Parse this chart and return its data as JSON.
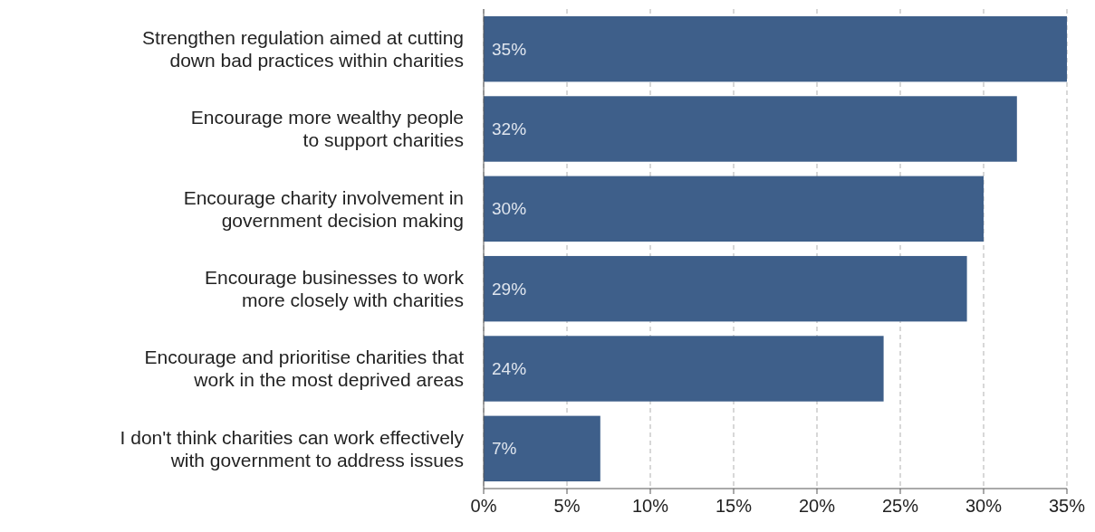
{
  "chart_data": {
    "type": "bar",
    "orientation": "horizontal",
    "categories": [
      "Strengthen regulation aimed at cutting\ndown bad practices within charities",
      "Encourage more wealthy people\nto support charities",
      "Encourage charity involvement in\ngovernment decision making",
      "Encourage businesses to work\nmore closely with charities",
      "Encourage and prioritise charities that\nwork in the most deprived areas",
      "I don't think charities can work effectively\nwith government to address issues"
    ],
    "values": [
      35,
      32,
      30,
      29,
      24,
      7
    ],
    "color": "#3e5f8a",
    "value_labels": [
      "35%",
      "32%",
      "30%",
      "29%",
      "24%",
      "7%"
    ],
    "xlim": [
      0,
      35
    ],
    "xticks": [
      {
        "value": 0,
        "label": "0%"
      },
      {
        "value": 5,
        "label": "5%"
      },
      {
        "value": 10,
        "label": "10%"
      },
      {
        "value": 15,
        "label": "15%"
      },
      {
        "value": 20,
        "label": "20%"
      },
      {
        "value": 25,
        "label": "25%"
      },
      {
        "value": 30,
        "label": "30%"
      },
      {
        "value": 35,
        "label": "35%"
      }
    ],
    "grid": "x"
  }
}
